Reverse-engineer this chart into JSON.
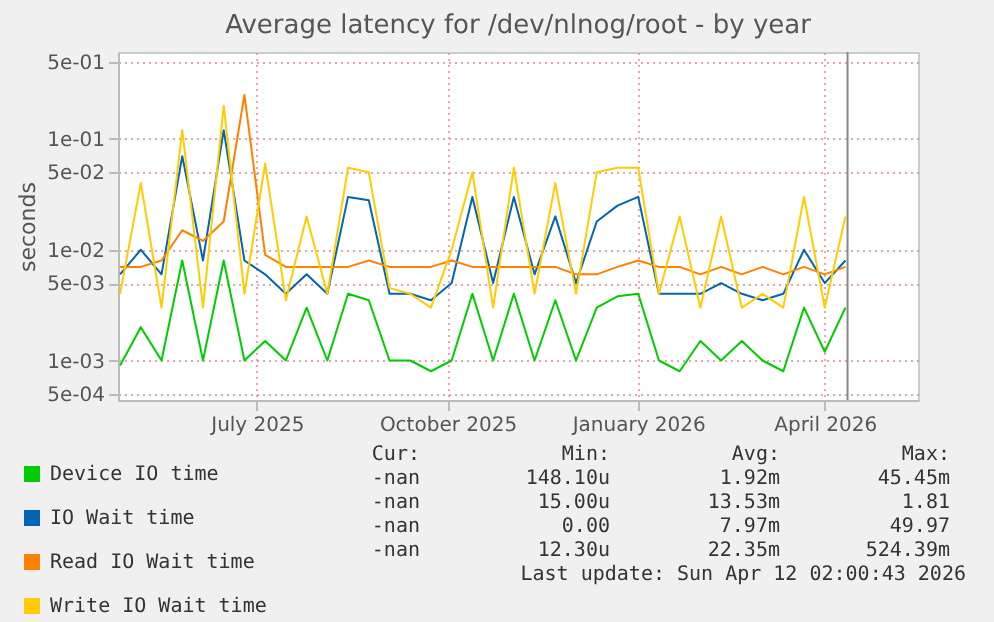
{
  "chart_data": {
    "type": "line",
    "title": "Average latency for /dev/nlnog/root - by year",
    "ylabel": "seconds",
    "log": "y",
    "grid": true,
    "legend": "bottom",
    "marker": "none",
    "line_style": "solid",
    "x": [
      "2025-04-26",
      "2025-05-06",
      "2025-05-16",
      "2025-05-26",
      "2025-06-05",
      "2025-06-15",
      "2025-06-25",
      "2025-07-05",
      "2025-07-15",
      "2025-07-25",
      "2025-08-04",
      "2025-08-14",
      "2025-08-24",
      "2025-09-03",
      "2025-09-13",
      "2025-09-23",
      "2025-10-03",
      "2025-10-13",
      "2025-10-23",
      "2025-11-02",
      "2025-11-12",
      "2025-11-22",
      "2025-12-02",
      "2025-12-12",
      "2025-12-22",
      "2026-01-01",
      "2026-01-11",
      "2026-01-21",
      "2026-01-31",
      "2026-02-10",
      "2026-02-20",
      "2026-03-02",
      "2026-03-12",
      "2026-03-22",
      "2026-04-01",
      "2026-04-11"
    ],
    "xlim": [
      "2025-04-25",
      "2026-05-16"
    ],
    "xticks": [
      {
        "value": "2025-07-01",
        "label": "July 2025"
      },
      {
        "value": "2025-10-01",
        "label": "October 2025"
      },
      {
        "value": "2026-01-01",
        "label": "January 2026"
      },
      {
        "value": "2026-04-01",
        "label": "April 2026"
      }
    ],
    "ylim": [
      0.00044,
      0.61
    ],
    "yticks": [
      {
        "value": 0.5,
        "label": "5e-01"
      },
      {
        "value": 0.1,
        "label": "1e-01"
      },
      {
        "value": 0.05,
        "label": "5e-02"
      },
      {
        "value": 0.01,
        "label": "1e-02"
      },
      {
        "value": 0.005,
        "label": "5e-03"
      },
      {
        "value": 0.001,
        "label": "1e-03"
      },
      {
        "value": 0.0005,
        "label": "5e-04"
      }
    ],
    "series": [
      {
        "name": "Device IO time",
        "color": "#00cc00",
        "values": [
          0.0009,
          0.002,
          0.001,
          0.008,
          0.001,
          0.008,
          0.001,
          0.0015,
          0.001,
          0.003,
          0.001,
          0.004,
          0.0035,
          0.001,
          0.001,
          0.0008,
          0.001,
          0.004,
          0.001,
          0.004,
          0.001,
          0.0035,
          0.001,
          0.003,
          0.0038,
          0.004,
          0.001,
          0.0008,
          0.0015,
          0.001,
          0.0015,
          0.001,
          0.0008,
          0.003,
          0.0012,
          0.003
        ]
      },
      {
        "name": "IO Wait time",
        "color": "#0066b3",
        "values": [
          0.006,
          0.01,
          0.006,
          0.07,
          0.008,
          0.12,
          0.008,
          0.006,
          0.004,
          0.006,
          0.004,
          0.03,
          0.028,
          0.004,
          0.004,
          0.0035,
          0.005,
          0.03,
          0.005,
          0.03,
          0.006,
          0.02,
          0.005,
          0.018,
          0.025,
          0.03,
          0.004,
          0.004,
          0.004,
          0.005,
          0.004,
          0.0035,
          0.004,
          0.01,
          0.005,
          0.008
        ]
      },
      {
        "name": "Read IO Wait time",
        "color": "#ff8000",
        "values": [
          0.007,
          0.007,
          0.008,
          0.015,
          0.012,
          0.018,
          0.25,
          0.009,
          0.007,
          0.007,
          0.007,
          0.007,
          0.008,
          0.007,
          0.007,
          0.007,
          0.008,
          0.007,
          0.007,
          0.007,
          0.007,
          0.007,
          0.006,
          0.006,
          0.007,
          0.008,
          0.007,
          0.007,
          0.006,
          0.007,
          0.006,
          0.007,
          0.006,
          0.007,
          0.006,
          0.007
        ]
      },
      {
        "name": "Write IO Wait time",
        "color": "#ffcc00",
        "values": [
          0.004,
          0.04,
          0.003,
          0.12,
          0.003,
          0.2,
          0.004,
          0.06,
          0.0035,
          0.02,
          0.004,
          0.055,
          0.05,
          0.0045,
          0.004,
          0.003,
          0.01,
          0.05,
          0.003,
          0.055,
          0.004,
          0.04,
          0.004,
          0.05,
          0.055,
          0.055,
          0.004,
          0.02,
          0.003,
          0.02,
          0.003,
          0.004,
          0.003,
          0.03,
          0.003,
          0.02
        ]
      }
    ],
    "ref_lines": [
      {
        "axis": "x",
        "value": "2026-04-12",
        "color": "#888888"
      }
    ],
    "annotations": [
      "Cur: Min: Avg: Max:",
      "-nan 148.10u 1.92m 45.45m",
      "-nan 15.00u 13.53m 1.81",
      "-nan 0.00 7.97m 49.97",
      "-nan 12.30u 22.35m 524.39m",
      "Last update: Sun Apr 12 02:00:43 2026"
    ]
  }
}
